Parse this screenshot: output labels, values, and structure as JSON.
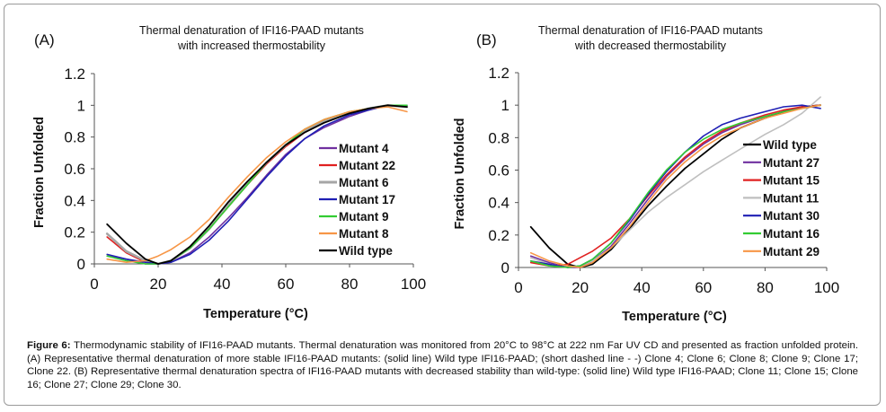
{
  "caption": {
    "label": "Figure 6:",
    "text": "Thermodynamic stability of IFI16-PAAD mutants. Thermal denaturation was monitored from 20°C to 98°C at 222 nm Far UV CD and presented as fraction unfolded protein. (A) Representative thermal denaturation of more stable IFI16-PAAD mutants: (solid line) Wild type IFI16-PAAD; (short dashed line - -) Clone 4; Clone 6; Clone 8; Clone 9; Clone 17; Clone 22. (B) Representative thermal denaturation spectra of IFI16-PAAD mutants with decreased stability than wild-type: (solid line) Wild type IFI16-PAAD; Clone 11; Clone 15; Clone 16; Clone 27; Clone 29; Clone 30."
  },
  "chart_data": [
    {
      "type": "line",
      "panel_label": "(A)",
      "title": "Thermal denaturation of IFI16-PAAD mutants with increased thermostability",
      "title_lines": [
        "Thermal denaturation of IFI16-PAAD mutants",
        "with increased thermostability"
      ],
      "xlabel": "Temperature (°C)",
      "ylabel": "Fraction Unfolded",
      "xlim": [
        0,
        100
      ],
      "ylim": [
        0,
        1.2
      ],
      "xticks": [
        0,
        20,
        40,
        60,
        80,
        100
      ],
      "yticks": [
        0,
        0.2,
        0.4,
        0.6,
        0.8,
        1,
        1.2
      ],
      "grid": false,
      "legend_position": "right",
      "series": [
        {
          "name": "Mutant 4",
          "color": "#7030a0",
          "x": [
            4,
            10,
            16,
            20,
            24,
            30,
            36,
            42,
            48,
            54,
            60,
            66,
            72,
            80,
            86,
            92,
            98
          ],
          "y": [
            0.05,
            0.03,
            0.0,
            0.0,
            0.01,
            0.07,
            0.17,
            0.29,
            0.42,
            0.56,
            0.69,
            0.79,
            0.86,
            0.93,
            0.97,
            1.0,
            1.0
          ]
        },
        {
          "name": "Mutant 22",
          "color": "#e02020",
          "x": [
            4,
            10,
            16,
            20,
            24,
            30,
            36,
            42,
            48,
            54,
            60,
            66,
            72,
            80,
            86,
            92,
            98
          ],
          "y": [
            0.17,
            0.07,
            0.01,
            0.0,
            0.02,
            0.1,
            0.22,
            0.36,
            0.5,
            0.63,
            0.74,
            0.83,
            0.89,
            0.95,
            0.98,
            1.0,
            0.99
          ]
        },
        {
          "name": "Mutant 6",
          "color": "#a6a6a6",
          "x": [
            4,
            10,
            16,
            20,
            24,
            30,
            36,
            42,
            48,
            54,
            60,
            66,
            72,
            80,
            86,
            92,
            98
          ],
          "y": [
            0.19,
            0.08,
            0.02,
            0.0,
            0.02,
            0.1,
            0.22,
            0.37,
            0.51,
            0.64,
            0.75,
            0.84,
            0.9,
            0.95,
            0.98,
            1.0,
            0.99
          ]
        },
        {
          "name": "Mutant 17",
          "color": "#1f1fb4",
          "x": [
            4,
            10,
            16,
            20,
            24,
            30,
            36,
            42,
            48,
            54,
            60,
            66,
            72,
            80,
            86,
            92,
            98
          ],
          "y": [
            0.06,
            0.03,
            0.01,
            0.0,
            0.01,
            0.06,
            0.15,
            0.27,
            0.41,
            0.55,
            0.68,
            0.79,
            0.87,
            0.94,
            0.97,
            1.0,
            1.0
          ]
        },
        {
          "name": "Mutant 9",
          "color": "#33cc33",
          "x": [
            4,
            10,
            16,
            20,
            24,
            30,
            36,
            42,
            48,
            54,
            60,
            66,
            72,
            80,
            86,
            92,
            98
          ],
          "y": [
            0.05,
            0.02,
            0.0,
            0.0,
            0.02,
            0.1,
            0.22,
            0.36,
            0.5,
            0.64,
            0.75,
            0.85,
            0.91,
            0.96,
            0.98,
            1.0,
            1.0
          ]
        },
        {
          "name": "Mutant 8",
          "color": "#f79646",
          "x": [
            4,
            10,
            16,
            20,
            24,
            30,
            36,
            42,
            48,
            54,
            60,
            66,
            72,
            80,
            86,
            92,
            98
          ],
          "y": [
            0.03,
            0.01,
            0.02,
            0.05,
            0.09,
            0.17,
            0.28,
            0.42,
            0.55,
            0.67,
            0.77,
            0.85,
            0.91,
            0.96,
            0.98,
            0.99,
            0.96
          ]
        },
        {
          "name": "Wild type",
          "color": "#000000",
          "x": [
            4,
            10,
            16,
            20,
            24,
            30,
            36,
            42,
            48,
            54,
            60,
            66,
            72,
            80,
            86,
            92,
            98
          ],
          "y": [
            0.25,
            0.13,
            0.03,
            0.0,
            0.02,
            0.11,
            0.24,
            0.39,
            0.52,
            0.64,
            0.75,
            0.83,
            0.89,
            0.95,
            0.98,
            1.0,
            0.99
          ]
        }
      ]
    },
    {
      "type": "line",
      "panel_label": "(B)",
      "title": "Thermal denaturation of IFI16-PAAD mutants with decreased thermostability",
      "title_lines": [
        "Thermal denaturation of IFI16-PAAD mutants",
        "with decreased thermostability"
      ],
      "xlabel": "Temperature (°C)",
      "ylabel": "Fraction Unfolded",
      "xlim": [
        0,
        100
      ],
      "ylim": [
        0,
        1.2
      ],
      "xticks": [
        0,
        20,
        40,
        60,
        80,
        100
      ],
      "yticks": [
        0,
        0.2,
        0.4,
        0.6,
        0.8,
        1,
        1.2
      ],
      "grid": false,
      "legend_position": "right",
      "series": [
        {
          "name": "Wild type",
          "color": "#000000",
          "x": [
            4,
            10,
            16,
            20,
            24,
            30,
            36,
            42,
            48,
            54,
            60,
            66,
            72,
            80,
            86,
            92,
            98
          ],
          "y": [
            0.25,
            0.12,
            0.02,
            0.0,
            0.02,
            0.11,
            0.24,
            0.38,
            0.5,
            0.61,
            0.7,
            0.79,
            0.86,
            0.92,
            0.96,
            0.99,
            1.0
          ]
        },
        {
          "name": "Mutant 27",
          "color": "#7030a0",
          "x": [
            4,
            10,
            16,
            20,
            24,
            30,
            36,
            42,
            48,
            54,
            60,
            66,
            72,
            80,
            86,
            92,
            98
          ],
          "y": [
            0.07,
            0.03,
            0.0,
            0.0,
            0.04,
            0.13,
            0.27,
            0.42,
            0.56,
            0.67,
            0.76,
            0.83,
            0.88,
            0.93,
            0.96,
            0.99,
            1.0
          ]
        },
        {
          "name": "Mutant 15",
          "color": "#e02020",
          "x": [
            4,
            10,
            16,
            20,
            24,
            30,
            36,
            42,
            48,
            54,
            60,
            66,
            72,
            80,
            86,
            92,
            98
          ],
          "y": [
            0.03,
            0.01,
            0.02,
            0.06,
            0.1,
            0.18,
            0.3,
            0.44,
            0.57,
            0.68,
            0.77,
            0.84,
            0.89,
            0.94,
            0.97,
            0.99,
            1.0
          ]
        },
        {
          "name": "Mutant 11",
          "color": "#bfbfbf",
          "x": [
            4,
            10,
            16,
            20,
            24,
            30,
            36,
            42,
            48,
            54,
            60,
            66,
            72,
            80,
            86,
            92,
            98
          ],
          "y": [
            0.06,
            0.02,
            0.0,
            0.01,
            0.04,
            0.12,
            0.23,
            0.34,
            0.43,
            0.51,
            0.59,
            0.66,
            0.73,
            0.82,
            0.88,
            0.95,
            1.05
          ]
        },
        {
          "name": "Mutant 30",
          "color": "#1f1fb4",
          "x": [
            4,
            10,
            16,
            20,
            24,
            30,
            36,
            42,
            48,
            54,
            60,
            66,
            72,
            80,
            86,
            92,
            98
          ],
          "y": [
            0.04,
            0.02,
            0.0,
            0.01,
            0.05,
            0.15,
            0.29,
            0.45,
            0.59,
            0.71,
            0.81,
            0.88,
            0.92,
            0.96,
            0.99,
            1.0,
            0.98
          ]
        },
        {
          "name": "Mutant 16",
          "color": "#33cc33",
          "x": [
            4,
            10,
            16,
            20,
            24,
            30,
            36,
            42,
            48,
            54,
            60,
            66,
            72,
            80,
            86,
            92,
            98
          ],
          "y": [
            0.04,
            0.01,
            0.0,
            0.01,
            0.05,
            0.15,
            0.3,
            0.46,
            0.6,
            0.71,
            0.79,
            0.85,
            0.89,
            0.93,
            0.96,
            0.98,
            1.0
          ]
        },
        {
          "name": "Mutant 29",
          "color": "#f79646",
          "x": [
            4,
            10,
            16,
            20,
            24,
            30,
            36,
            42,
            48,
            54,
            60,
            66,
            72,
            80,
            86,
            92,
            98
          ],
          "y": [
            0.09,
            0.04,
            0.01,
            0.0,
            0.03,
            0.12,
            0.25,
            0.4,
            0.54,
            0.65,
            0.74,
            0.81,
            0.86,
            0.92,
            0.95,
            0.98,
            1.0
          ]
        }
      ]
    }
  ]
}
